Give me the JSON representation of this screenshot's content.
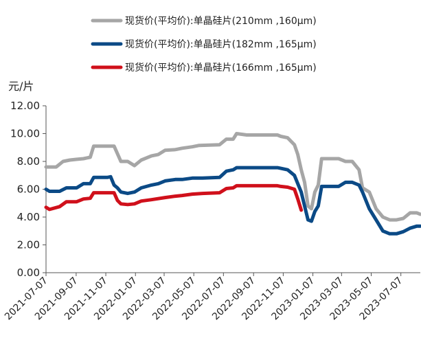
{
  "chart_data": {
    "type": "line",
    "title": "",
    "xlabel": "",
    "ylabel": "元/片",
    "ylim": [
      0,
      12
    ],
    "yticks": [
      "0.00",
      "2.00",
      "4.00",
      "6.00",
      "8.00",
      "10.00",
      "12.00"
    ],
    "xticks": [
      "2021-07-07",
      "2021-09-07",
      "2021-11-07",
      "2022-01-07",
      "2022-03-07",
      "2022-05-07",
      "2022-07-07",
      "2022-09-07",
      "2022-11-07",
      "2023-01-07",
      "2023-03-07",
      "2023-05-07",
      "2023-07-07"
    ],
    "grid": false,
    "legend_position": "top",
    "series": [
      {
        "name": "现货价(平均价):单晶硅片(210mm ,160µm)",
        "color": "#a6a6a6",
        "points": [
          [
            "2021-07-07",
            7.6
          ],
          [
            "2021-07-28",
            7.6
          ],
          [
            "2021-08-11",
            8.0
          ],
          [
            "2021-08-25",
            8.1
          ],
          [
            "2021-09-07",
            8.15
          ],
          [
            "2021-09-22",
            8.2
          ],
          [
            "2021-10-06",
            8.3
          ],
          [
            "2021-10-13",
            9.1
          ],
          [
            "2021-11-10",
            9.1
          ],
          [
            "2021-11-24",
            9.1
          ],
          [
            "2021-12-08",
            8.0
          ],
          [
            "2021-12-22",
            8.0
          ],
          [
            "2022-01-05",
            7.7
          ],
          [
            "2022-01-19",
            8.1
          ],
          [
            "2022-02-09",
            8.4
          ],
          [
            "2022-02-23",
            8.5
          ],
          [
            "2022-03-09",
            8.8
          ],
          [
            "2022-03-30",
            8.85
          ],
          [
            "2022-04-13",
            8.95
          ],
          [
            "2022-05-04",
            9.05
          ],
          [
            "2022-05-18",
            9.15
          ],
          [
            "2022-06-29",
            9.2
          ],
          [
            "2022-07-13",
            9.6
          ],
          [
            "2022-07-27",
            9.6
          ],
          [
            "2022-08-03",
            10.0
          ],
          [
            "2022-08-24",
            9.9
          ],
          [
            "2022-09-28",
            9.9
          ],
          [
            "2022-10-26",
            9.9
          ],
          [
            "2022-11-02",
            9.8
          ],
          [
            "2022-11-16",
            9.7
          ],
          [
            "2022-11-30",
            9.2
          ],
          [
            "2022-12-07",
            8.5
          ],
          [
            "2022-12-14",
            7.4
          ],
          [
            "2022-12-21",
            6.5
          ],
          [
            "2022-12-28",
            4.8
          ],
          [
            "2023-01-04",
            4.6
          ],
          [
            "2023-01-11",
            5.8
          ],
          [
            "2023-01-18",
            6.3
          ],
          [
            "2023-01-25",
            8.2
          ],
          [
            "2023-02-15",
            8.2
          ],
          [
            "2023-03-01",
            8.2
          ],
          [
            "2023-03-15",
            8.0
          ],
          [
            "2023-03-29",
            8.0
          ],
          [
            "2023-04-12",
            7.4
          ],
          [
            "2023-04-19",
            6.1
          ],
          [
            "2023-05-03",
            5.8
          ],
          [
            "2023-05-17",
            4.6
          ],
          [
            "2023-05-31",
            4.0
          ],
          [
            "2023-06-14",
            3.8
          ],
          [
            "2023-06-28",
            3.8
          ],
          [
            "2023-07-12",
            3.9
          ],
          [
            "2023-07-26",
            4.3
          ],
          [
            "2023-08-09",
            4.3
          ],
          [
            "2023-08-16",
            4.2
          ]
        ]
      },
      {
        "name": "现货价(平均价):单晶硅片(182mm ,165µm)",
        "color": "#0b4a86",
        "points": [
          [
            "2021-07-07",
            6.0
          ],
          [
            "2021-07-14",
            5.85
          ],
          [
            "2021-08-04",
            5.85
          ],
          [
            "2021-08-18",
            6.1
          ],
          [
            "2021-09-08",
            6.1
          ],
          [
            "2021-09-22",
            6.4
          ],
          [
            "2021-10-06",
            6.4
          ],
          [
            "2021-10-13",
            6.85
          ],
          [
            "2021-11-10",
            6.85
          ],
          [
            "2021-11-17",
            6.9
          ],
          [
            "2021-11-24",
            6.3
          ],
          [
            "2021-12-01",
            6.1
          ],
          [
            "2021-12-08",
            5.8
          ],
          [
            "2021-12-22",
            5.7
          ],
          [
            "2022-01-05",
            5.8
          ],
          [
            "2022-01-19",
            6.1
          ],
          [
            "2022-02-09",
            6.3
          ],
          [
            "2022-02-23",
            6.4
          ],
          [
            "2022-03-09",
            6.6
          ],
          [
            "2022-03-30",
            6.7
          ],
          [
            "2022-04-13",
            6.7
          ],
          [
            "2022-05-04",
            6.8
          ],
          [
            "2022-05-25",
            6.8
          ],
          [
            "2022-06-29",
            6.85
          ],
          [
            "2022-07-13",
            7.3
          ],
          [
            "2022-07-27",
            7.4
          ],
          [
            "2022-08-03",
            7.55
          ],
          [
            "2022-09-28",
            7.55
          ],
          [
            "2022-10-26",
            7.55
          ],
          [
            "2022-11-02",
            7.5
          ],
          [
            "2022-11-16",
            7.4
          ],
          [
            "2022-11-30",
            7.0
          ],
          [
            "2022-12-07",
            6.4
          ],
          [
            "2022-12-14",
            5.8
          ],
          [
            "2022-12-21",
            4.8
          ],
          [
            "2022-12-28",
            3.8
          ],
          [
            "2023-01-04",
            3.7
          ],
          [
            "2023-01-11",
            4.4
          ],
          [
            "2023-01-18",
            4.8
          ],
          [
            "2023-01-25",
            6.2
          ],
          [
            "2023-02-15",
            6.2
          ],
          [
            "2023-03-01",
            6.2
          ],
          [
            "2023-03-15",
            6.5
          ],
          [
            "2023-03-29",
            6.5
          ],
          [
            "2023-04-12",
            6.3
          ],
          [
            "2023-04-19",
            5.8
          ],
          [
            "2023-05-03",
            4.6
          ],
          [
            "2023-05-17",
            3.8
          ],
          [
            "2023-05-31",
            3.0
          ],
          [
            "2023-06-14",
            2.8
          ],
          [
            "2023-06-28",
            2.8
          ],
          [
            "2023-07-12",
            2.95
          ],
          [
            "2023-07-26",
            3.2
          ],
          [
            "2023-08-09",
            3.35
          ],
          [
            "2023-08-16",
            3.35
          ]
        ]
      },
      {
        "name": "现货价(平均价):单晶硅片(166mm ,165µm)",
        "color": "#d0101b",
        "points": [
          [
            "2021-07-07",
            4.7
          ],
          [
            "2021-07-14",
            4.55
          ],
          [
            "2021-08-04",
            4.75
          ],
          [
            "2021-08-18",
            5.1
          ],
          [
            "2021-09-08",
            5.1
          ],
          [
            "2021-09-22",
            5.3
          ],
          [
            "2021-10-06",
            5.35
          ],
          [
            "2021-10-13",
            5.75
          ],
          [
            "2021-11-10",
            5.75
          ],
          [
            "2021-11-24",
            5.75
          ],
          [
            "2021-12-01",
            5.2
          ],
          [
            "2021-12-08",
            4.95
          ],
          [
            "2021-12-22",
            4.9
          ],
          [
            "2022-01-05",
            4.95
          ],
          [
            "2022-01-19",
            5.15
          ],
          [
            "2022-02-09",
            5.25
          ],
          [
            "2022-03-09",
            5.4
          ],
          [
            "2022-03-30",
            5.5
          ],
          [
            "2022-04-13",
            5.55
          ],
          [
            "2022-05-04",
            5.65
          ],
          [
            "2022-05-25",
            5.7
          ],
          [
            "2022-06-29",
            5.75
          ],
          [
            "2022-07-13",
            6.05
          ],
          [
            "2022-07-27",
            6.1
          ],
          [
            "2022-08-03",
            6.25
          ],
          [
            "2022-09-28",
            6.25
          ],
          [
            "2022-10-26",
            6.25
          ],
          [
            "2022-11-02",
            6.2
          ],
          [
            "2022-11-16",
            6.15
          ],
          [
            "2022-11-30",
            6.0
          ],
          [
            "2022-12-07",
            5.3
          ],
          [
            "2022-12-14",
            4.5
          ]
        ]
      }
    ]
  }
}
